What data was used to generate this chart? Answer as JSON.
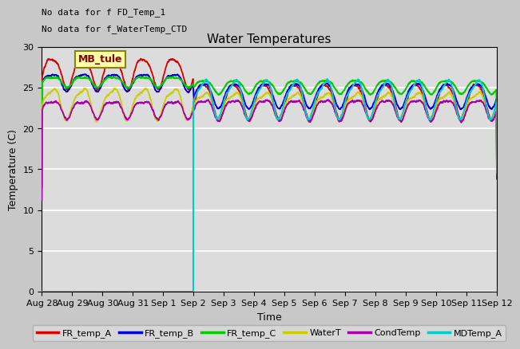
{
  "title": "Water Temperatures",
  "xlabel": "Time",
  "ylabel": "Temperature (C)",
  "ylim": [
    0,
    30
  ],
  "annotation1": "No data for f FD_Temp_1",
  "annotation2": "No data for f_WaterTemp_CTD",
  "mb_tule_label": "MB_tule",
  "bg_color": "#dcdcdc",
  "plot_bg_color": "#e0e0e0",
  "grid_color": "#c8c8c8",
  "xtick_labels": [
    "Aug 28",
    "Aug 29",
    "Aug 30",
    "Aug 31",
    "Sep 1",
    "Sep 2",
    "Sep 3",
    "Sep 4",
    "Sep 5",
    "Sep 6",
    "Sep 7",
    "Sep 8",
    "Sep 9",
    "Sep 10",
    "Sep 11",
    "Sep 12"
  ],
  "vertical_line_x": 5.0,
  "vertical_line_color": "#00cccc",
  "vertical_line_lw": 1.5,
  "legend_series": [
    "FR_temp_A",
    "FR_temp_B",
    "FR_temp_C",
    "WaterT",
    "CondTemp",
    "MDTemp_A"
  ],
  "legend_colors": [
    "#dd0000",
    "#0000dd",
    "#00cc00",
    "#cccc00",
    "#aa00aa",
    "#00cccc"
  ]
}
